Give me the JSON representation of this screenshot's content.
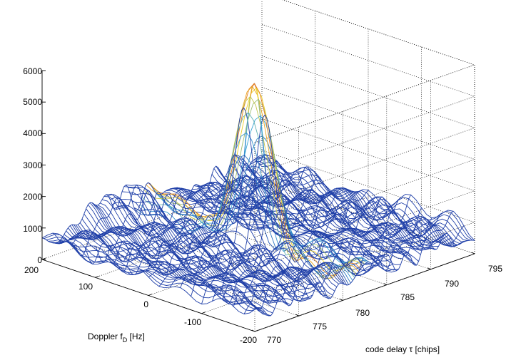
{
  "chart_data": {
    "type": "surface",
    "title": "",
    "z_ticks": [
      "0",
      "1000",
      "2000",
      "3000",
      "4000",
      "5000",
      "6000"
    ],
    "zlim": [
      0,
      6000
    ],
    "doppler_ticks": [
      "200",
      "100",
      "0",
      "-100",
      "-200"
    ],
    "doppler_label": "Doppler f",
    "doppler_label_sub": "D",
    "doppler_label_unit": " [Hz]",
    "doppler_range": [
      -200,
      200
    ],
    "code_delay_ticks": [
      "770",
      "775",
      "780",
      "785",
      "790",
      "795"
    ],
    "code_delay_label": "code delay τ [chips]",
    "code_delay_range": [
      770,
      795
    ],
    "grid": true,
    "peak": {
      "doppler_hz": 0,
      "code_delay_chips": 782,
      "value": 5550
    },
    "secondary_peak": {
      "doppler_hz": -40,
      "code_delay_chips": 789,
      "value": 1100
    },
    "noise_floor_range": [
      0,
      2200
    ],
    "colors": {
      "mesh": "#1f3fa8",
      "mesh_mid": "#3aa7d6",
      "peak_top": "#d62728",
      "peak_ridge": "#f0d020"
    }
  }
}
